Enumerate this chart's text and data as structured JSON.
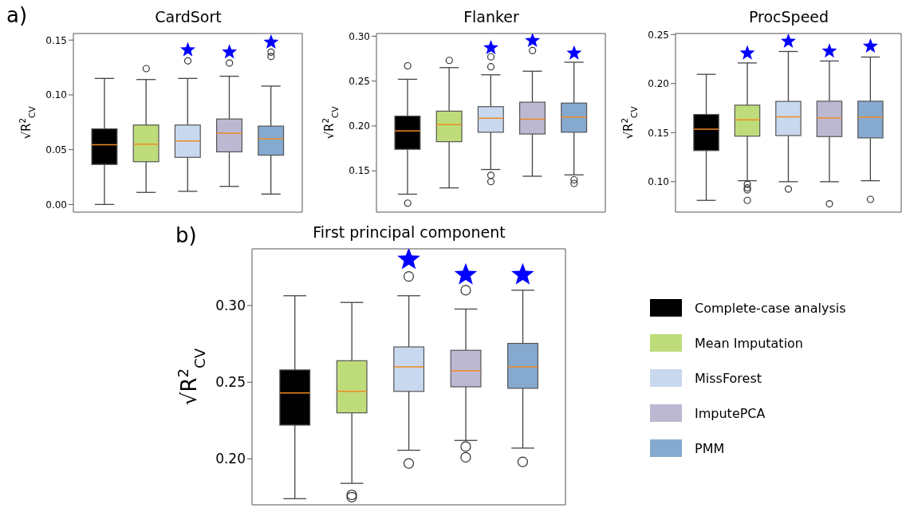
{
  "chart_data": [
    {
      "type": "box",
      "title": "CardSort",
      "ylabel": "√R$^{2}$$_{CV}$",
      "annotations": [
        "a)"
      ],
      "categories": [
        null,
        null,
        null,
        null,
        null
      ],
      "ylim": [
        -0.007,
        0.156
      ],
      "yticks": [
        {
          "value": 0,
          "label": "0.00"
        },
        {
          "value": 0.05,
          "label": "0.05"
        },
        {
          "value": 0.1,
          "label": "0.10"
        },
        {
          "value": 0.15,
          "label": "0.15"
        }
      ],
      "legend": false,
      "series": [
        {
          "color": "#000000",
          "boxes": [
            {
              "low": 0,
              "q1": 0.0365,
              "median": 0.0545,
              "q3": 0.069,
              "high": 0.115
            },
            null,
            null,
            null,
            null
          ]
        },
        {
          "color": "#bedd7a",
          "boxes": [
            null,
            {
              "low": 0.011,
              "q1": 0.039,
              "median": 0.055,
              "q3": 0.0725,
              "high": 0.114,
              "outliers": [
                0.124
              ]
            },
            null,
            null,
            null
          ]
        },
        {
          "color": "#c8d8ee",
          "boxes": [
            null,
            null,
            {
              "low": 0.012,
              "q1": 0.043,
              "median": 0.058,
              "q3": 0.0725,
              "high": 0.115,
              "outliers": [
                0.131
              ]
            },
            null,
            null
          ]
        },
        {
          "color": "#bcb8d2",
          "boxes": [
            null,
            null,
            null,
            {
              "low": 0.0165,
              "q1": 0.048,
              "median": 0.065,
              "q3": 0.078,
              "high": 0.117,
              "outliers": [
                0.129
              ]
            },
            null
          ]
        },
        {
          "color": "#86aacf",
          "boxes": [
            null,
            null,
            null,
            null,
            {
              "low": 0.0095,
              "q1": 0.045,
              "median": 0.06,
              "q3": 0.0715,
              "high": 0.108,
              "outliers": [
                0.135,
                0.139
              ]
            }
          ]
        },
        {
          "type": "scatter",
          "marker": "star",
          "color": "#0000ff",
          "values": [
            null,
            null,
            0.141,
            0.139,
            0.148
          ]
        }
      ]
    },
    {
      "type": "box",
      "title": "Flanker",
      "ylabel": "√R$^{2}$$_{CV}$",
      "categories": [
        null,
        null,
        null,
        null,
        null
      ],
      "ylim": [
        0.104,
        0.303
      ],
      "yticks": [
        {
          "value": 0.15,
          "label": "0.15"
        },
        {
          "value": 0.2,
          "label": "0.20"
        },
        {
          "value": 0.25,
          "label": "0.25"
        },
        {
          "value": 0.3,
          "label": "0.30"
        }
      ],
      "legend": false,
      "series": [
        {
          "color": "#000000",
          "boxes": [
            {
              "low": 0.124,
              "q1": 0.174,
              "median": 0.1945,
              "q3": 0.211,
              "high": 0.252,
              "outliers": [
                0.267,
                0.114
              ]
            },
            null,
            null,
            null,
            null
          ]
        },
        {
          "color": "#bedd7a",
          "boxes": [
            null,
            {
              "low": 0.131,
              "q1": 0.1825,
              "median": 0.2015,
              "q3": 0.2165,
              "high": 0.265,
              "outliers": [
                0.273
              ]
            },
            null,
            null,
            null
          ]
        },
        {
          "color": "#c8d8ee",
          "boxes": [
            null,
            null,
            {
              "low": 0.1515,
              "q1": 0.193,
              "median": 0.2085,
              "q3": 0.2215,
              "high": 0.257,
              "outliers": [
                0.277,
                0.266,
                0.145,
                0.138
              ]
            },
            null,
            null
          ]
        },
        {
          "color": "#bcb8d2",
          "boxes": [
            null,
            null,
            null,
            {
              "low": 0.144,
              "q1": 0.191,
              "median": 0.2075,
              "q3": 0.2265,
              "high": 0.261,
              "outliers": [
                0.284
              ]
            },
            null
          ]
        },
        {
          "color": "#86aacf",
          "boxes": [
            null,
            null,
            null,
            null,
            {
              "low": 0.1455,
              "q1": 0.193,
              "median": 0.21,
              "q3": 0.2255,
              "high": 0.271,
              "outliers": [
                0.14,
                0.136
              ]
            }
          ]
        },
        {
          "type": "scatter",
          "marker": "star",
          "color": "#0000ff",
          "values": [
            null,
            null,
            0.287,
            0.295,
            0.281
          ]
        }
      ]
    },
    {
      "type": "box",
      "title": "ProcSpeed",
      "ylabel": "√R$^{2}$$_{CV}$",
      "categories": [
        null,
        null,
        null,
        null,
        null
      ],
      "ylim": [
        0.069,
        0.251
      ],
      "yticks": [
        {
          "value": 0.1,
          "label": "0.10"
        },
        {
          "value": 0.15,
          "label": "0.15"
        },
        {
          "value": 0.2,
          "label": "0.20"
        },
        {
          "value": 0.25,
          "label": "0.25"
        }
      ],
      "legend": false,
      "series": [
        {
          "color": "#000000",
          "boxes": [
            {
              "low": 0.081,
              "q1": 0.1317,
              "median": 0.1535,
              "q3": 0.1685,
              "high": 0.2094
            },
            null,
            null,
            null,
            null
          ]
        },
        {
          "color": "#bedd7a",
          "boxes": [
            null,
            {
              "low": 0.101,
              "q1": 0.1464,
              "median": 0.163,
              "q3": 0.178,
              "high": 0.221,
              "outliers": [
                0.0974,
                0.0937,
                0.0917,
                0.081
              ]
            },
            null,
            null,
            null
          ]
        },
        {
          "color": "#c8d8ee",
          "boxes": [
            null,
            null,
            {
              "low": 0.1,
              "q1": 0.147,
              "median": 0.166,
              "q3": 0.1818,
              "high": 0.2327,
              "outliers": [
                0.0925
              ]
            },
            null,
            null
          ]
        },
        {
          "color": "#bcb8d2",
          "boxes": [
            null,
            null,
            null,
            {
              "low": 0.1,
              "q1": 0.146,
              "median": 0.165,
              "q3": 0.182,
              "high": 0.223,
              "outliers": [
                0.0775
              ]
            },
            null
          ]
        },
        {
          "color": "#86aacf",
          "boxes": [
            null,
            null,
            null,
            null,
            {
              "low": 0.101,
              "q1": 0.1446,
              "median": 0.1657,
              "q3": 0.182,
              "high": 0.227,
              "outliers": [
                0.082
              ]
            }
          ]
        },
        {
          "type": "scatter",
          "marker": "star",
          "color": "#0000ff",
          "values": [
            null,
            0.231,
            0.243,
            0.233,
            0.238
          ]
        }
      ]
    },
    {
      "type": "box",
      "title": "First principal component",
      "ylabel": "√R$^{2}$$_{CV}$",
      "annotations": [
        "b)"
      ],
      "categories": [
        null,
        null,
        null,
        null,
        null
      ],
      "ylim": [
        0.17,
        0.337
      ],
      "yticks": [
        {
          "value": 0.2,
          "label": "0.20"
        },
        {
          "value": 0.25,
          "label": "0.25"
        },
        {
          "value": 0.3,
          "label": "0.30"
        }
      ],
      "legend": "right",
      "series": [
        {
          "name": "Complete-case analysis",
          "color": "#000000",
          "boxes": [
            {
              "low": 0.174,
              "q1": 0.222,
              "median": 0.243,
              "q3": 0.258,
              "high": 0.3064
            },
            null,
            null,
            null,
            null
          ]
        },
        {
          "name": "Mean Imputation",
          "color": "#bedd7a",
          "boxes": [
            null,
            {
              "low": 0.184,
              "q1": 0.23,
              "median": 0.244,
              "q3": 0.264,
              "high": 0.302,
              "outliers": [
                0.1765,
                0.175
              ]
            },
            null,
            null,
            null
          ]
        },
        {
          "name": "MissForest",
          "color": "#c8d8ee",
          "boxes": [
            null,
            null,
            {
              "low": 0.2056,
              "q1": 0.244,
              "median": 0.26,
              "q3": 0.273,
              "high": 0.3064,
              "outliers": [
                0.319,
                0.197
              ]
            },
            null,
            null
          ]
        },
        {
          "name": "ImputePCA",
          "color": "#bcb8d2",
          "boxes": [
            null,
            null,
            null,
            {
              "low": 0.212,
              "q1": 0.247,
              "median": 0.2574,
              "q3": 0.2708,
              "high": 0.2977,
              "outliers": [
                0.31,
                0.208,
                0.201
              ]
            },
            null
          ]
        },
        {
          "name": "PMM",
          "color": "#86aacf",
          "boxes": [
            null,
            null,
            null,
            null,
            {
              "low": 0.207,
              "q1": 0.246,
              "median": 0.26,
              "q3": 0.2753,
              "high": 0.31,
              "outliers": [
                0.198
              ]
            }
          ]
        },
        {
          "type": "scatter",
          "marker": "star",
          "color": "#0000ff",
          "values": [
            null,
            null,
            0.33,
            0.32,
            0.32
          ]
        }
      ]
    }
  ]
}
